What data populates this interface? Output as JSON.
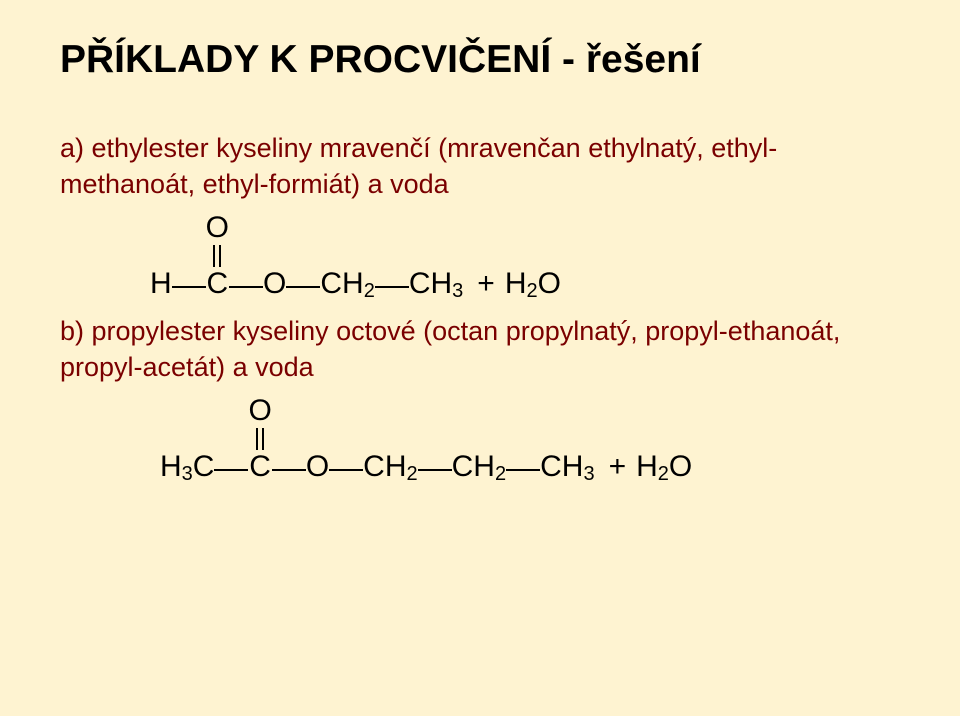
{
  "title": "PŘÍKLADY K PROCVIČENÍ - řešení",
  "item_a": {
    "label": "a) ethylester kyseliny mravenčí (mravenčan ethylnatý, ethyl-methanoát, ethyl-formiát) a voda",
    "formula": {
      "fragments": [
        "H",
        "C",
        "O",
        "CH",
        "2",
        "CH",
        "3"
      ],
      "carbonyl_top": "O",
      "plus": "+",
      "product": [
        "H",
        "2",
        "O"
      ]
    }
  },
  "item_b": {
    "label": "b) propylester kyseliny octové (octan propylnatý, propyl-ethanoát, propyl-acetát) a voda",
    "formula": {
      "fragments": [
        "H",
        "3",
        "C",
        "C",
        "O",
        "CH",
        "2",
        "CH",
        "2",
        "CH",
        "3"
      ],
      "carbonyl_top": "O",
      "plus": "+",
      "product": [
        "H",
        "2",
        "O"
      ]
    }
  },
  "colors": {
    "background": "#fef3d1",
    "title": "#000000",
    "answer_text": "#7a0000",
    "formula": "#000000"
  },
  "font_sizes": {
    "title": 39,
    "answer": 27,
    "formula": 30,
    "subscript": 20
  }
}
